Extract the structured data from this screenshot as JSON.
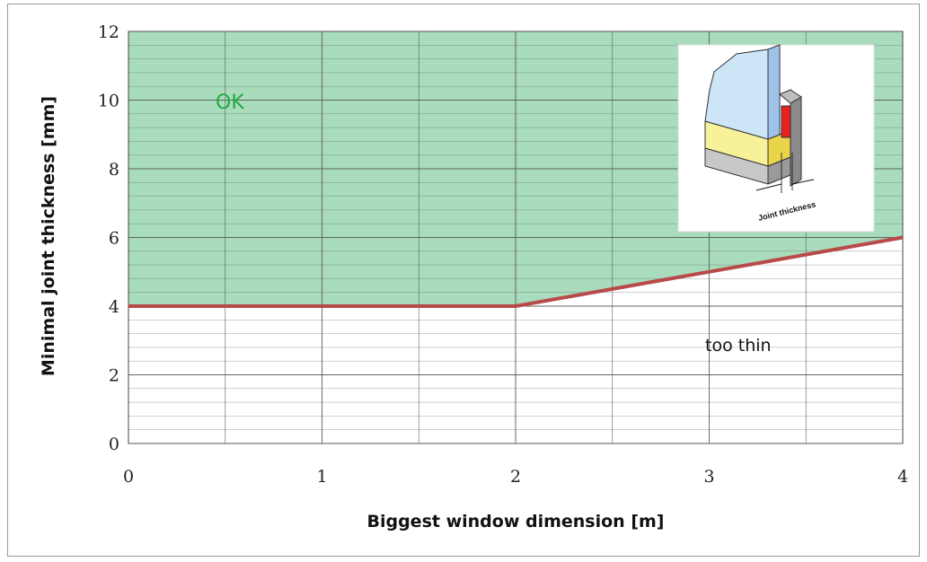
{
  "chart_data": {
    "type": "line",
    "x": [
      0,
      2,
      4
    ],
    "series": [
      {
        "values": [
          4,
          4,
          6
        ]
      }
    ],
    "xlabel": "Biggest window dimension [m]",
    "ylabel": "Minimal joint thickness [mm]",
    "xlim": [
      0,
      4
    ],
    "ylim": [
      0,
      12
    ],
    "xticks": [
      "0",
      "1",
      "2",
      "3",
      "4"
    ],
    "yticks": [
      "0",
      "2",
      "4",
      "6",
      "8",
      "10",
      "12"
    ],
    "grid": true,
    "regions": {
      "above": "OK",
      "below": "too thin"
    },
    "inset_label": "Joint  thickness"
  },
  "colors": {
    "ok_fill": "#a8dcbc",
    "line": "#b84a4a",
    "grid": "#555555",
    "ok_text": "#22aa44"
  }
}
